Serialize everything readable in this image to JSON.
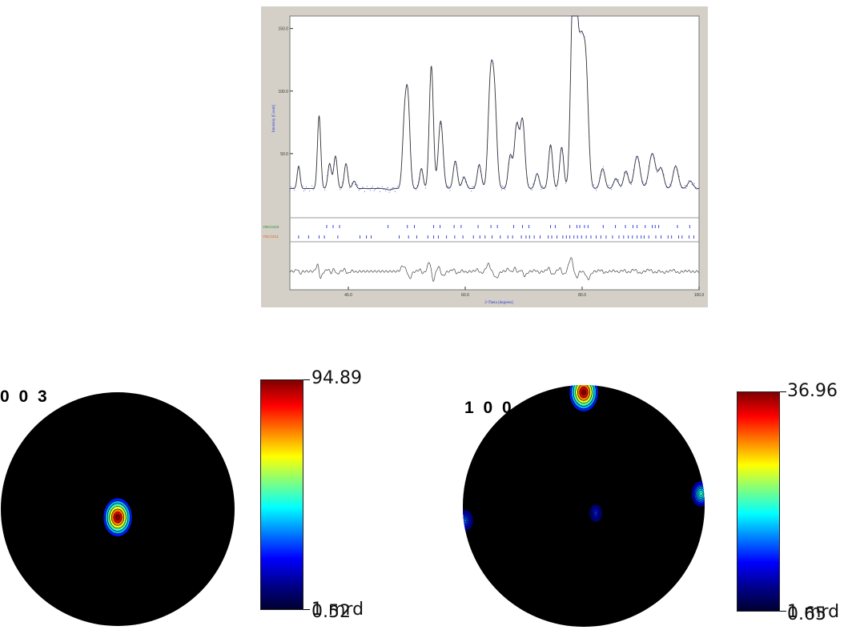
{
  "xrd_pattern": {
    "phase_labels": [
      "YBCO123",
      "YBCO211"
    ],
    "colors": {
      "observed": "#2a33d6",
      "calculated": "#303030",
      "phase1_marks": "#2a33d6",
      "phase1_label": "#2e8b2e",
      "phase2_marks": "#2a33d6",
      "phase2_label": "#d2691e",
      "axis_label": "#2a33d6"
    }
  },
  "pole_figures": [
    {
      "title": "0 0 3",
      "max_label": "94.89",
      "min_label": "0.52",
      "unit_label": "1 mrd"
    },
    {
      "title": "1 0 0",
      "max_label": "36.96",
      "min_label": "0.65",
      "unit_label": "1 mrd"
    }
  ],
  "colorbar_colors": [
    "#7f0000",
    "#ff0000",
    "#ff7f00",
    "#ffff00",
    "#7fff7f",
    "#00ffff",
    "#007fff",
    "#0000ff",
    "#00008f",
    "#000030"
  ],
  "chart_data": [
    {
      "type": "line",
      "title": "",
      "xlabel": "2-Theta [degrees]",
      "ylabel": "Intensity [Count]",
      "xlim": [
        30,
        100
      ],
      "ylim": [
        0,
        160
      ],
      "x_ticks": [
        "40.0",
        "60.0",
        "80.0",
        "100.0"
      ],
      "y_ticks": [
        "50.0",
        "100.0",
        "150.0"
      ],
      "peaks": [
        {
          "x": 31.5,
          "y": 40,
          "w": 0.25
        },
        {
          "x": 35.0,
          "y": 80,
          "w": 0.28
        },
        {
          "x": 36.8,
          "y": 42,
          "w": 0.3
        },
        {
          "x": 37.8,
          "y": 48,
          "w": 0.3
        },
        {
          "x": 39.6,
          "y": 42,
          "w": 0.3
        },
        {
          "x": 41.0,
          "y": 28,
          "w": 0.3
        },
        {
          "x": 47.0,
          "y": 21,
          "w": 0.4
        },
        {
          "x": 49.6,
          "y": 72,
          "w": 0.35
        },
        {
          "x": 50.2,
          "y": 89,
          "w": 0.35
        },
        {
          "x": 52.5,
          "y": 38,
          "w": 0.3
        },
        {
          "x": 54.2,
          "y": 120,
          "w": 0.35
        },
        {
          "x": 55.8,
          "y": 76,
          "w": 0.4
        },
        {
          "x": 58.3,
          "y": 44,
          "w": 0.35
        },
        {
          "x": 59.8,
          "y": 31,
          "w": 0.35
        },
        {
          "x": 62.4,
          "y": 41,
          "w": 0.35
        },
        {
          "x": 64.3,
          "y": 102,
          "w": 0.4
        },
        {
          "x": 65.0,
          "y": 92,
          "w": 0.4
        },
        {
          "x": 67.7,
          "y": 48,
          "w": 0.35
        },
        {
          "x": 68.8,
          "y": 72,
          "w": 0.4
        },
        {
          "x": 69.8,
          "y": 76,
          "w": 0.4
        },
        {
          "x": 72.3,
          "y": 34,
          "w": 0.35
        },
        {
          "x": 74.6,
          "y": 57,
          "w": 0.35
        },
        {
          "x": 76.5,
          "y": 55,
          "w": 0.35
        },
        {
          "x": 78.4,
          "y": 158,
          "w": 0.4
        },
        {
          "x": 79.0,
          "y": 132,
          "w": 0.4
        },
        {
          "x": 79.8,
          "y": 112,
          "w": 0.4
        },
        {
          "x": 80.6,
          "y": 122,
          "w": 0.45
        },
        {
          "x": 83.5,
          "y": 38,
          "w": 0.4
        },
        {
          "x": 85.8,
          "y": 30,
          "w": 0.4
        },
        {
          "x": 87.5,
          "y": 36,
          "w": 0.4
        },
        {
          "x": 89.4,
          "y": 48,
          "w": 0.5
        },
        {
          "x": 92.0,
          "y": 50,
          "w": 0.55
        },
        {
          "x": 93.5,
          "y": 38,
          "w": 0.45
        },
        {
          "x": 96.0,
          "y": 40,
          "w": 0.45
        },
        {
          "x": 98.5,
          "y": 28,
          "w": 0.45
        }
      ],
      "background": 22,
      "phase1_positions": [
        36.3,
        37.4,
        38.5,
        46.8,
        50.1,
        51.3,
        54.6,
        55.7,
        58.1,
        59.3,
        62.2,
        64.4,
        65.5,
        68.3,
        69.8,
        70.9,
        74.6,
        75.4,
        77.9,
        79.1,
        79.6,
        80.4,
        81.0,
        83.6,
        85.7,
        87.4,
        88.7,
        89.4,
        90.8,
        92.0,
        92.5,
        93.1,
        96.3,
        98.4
      ],
      "phase2_positions": [
        31.5,
        33.2,
        35.0,
        35.9,
        38.2,
        42.0,
        43.1,
        43.9,
        48.7,
        50.3,
        51.7,
        53.6,
        54.6,
        55.4,
        56.8,
        58.2,
        59.6,
        61.4,
        62.5,
        63.4,
        64.6,
        66.0,
        67.3,
        68.1,
        69.6,
        70.4,
        71.0,
        71.8,
        72.8,
        74.2,
        74.8,
        75.7,
        76.7,
        77.3,
        77.9,
        78.6,
        79.2,
        79.9,
        80.7,
        81.5,
        82.4,
        83.2,
        84.1,
        85.2,
        86.3,
        87.1,
        87.9,
        88.6,
        89.4,
        90.1,
        90.6,
        91.4,
        92.6,
        93.5,
        94.7,
        95.3,
        96.5,
        97.1,
        98.3,
        99.1
      ]
    },
    {
      "type": "heatmap",
      "title": "0 0 3",
      "scale_min": 0.52,
      "scale_max": 94.89,
      "unit": "mrd",
      "features": [
        {
          "x": 0.0,
          "y": -0.07,
          "peak": 94.89
        }
      ]
    },
    {
      "type": "heatmap",
      "title": "1 0 0",
      "scale_min": 0.65,
      "scale_max": 36.96,
      "unit": "mrd",
      "features": [
        {
          "x": 0.0,
          "y": 0.94,
          "peak": 36.96
        },
        {
          "x": 0.97,
          "y": 0.1,
          "peak": 16
        },
        {
          "x": -0.98,
          "y": -0.12,
          "peak": 9
        },
        {
          "x": 0.1,
          "y": -0.06,
          "peak": 3
        }
      ]
    }
  ]
}
